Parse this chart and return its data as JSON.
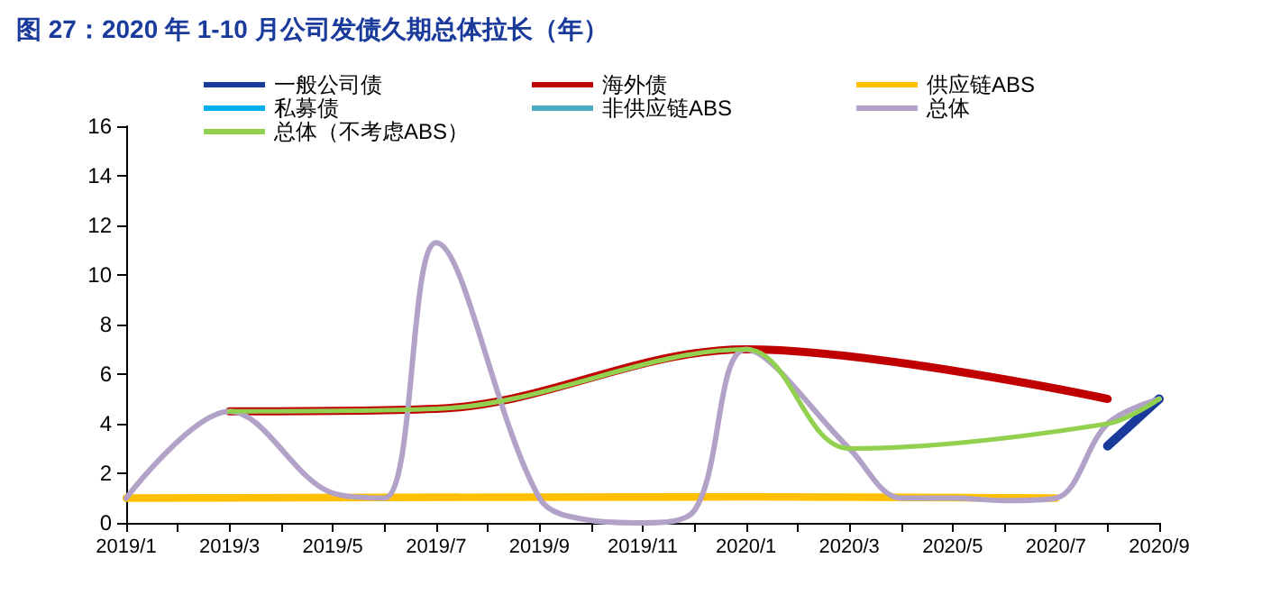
{
  "chart_data": {
    "type": "line",
    "title": "图 27：2020 年 1-10 月公司发债久期总体拉长（年）",
    "categories": [
      "2019/1",
      null,
      "2019/3",
      null,
      "2019/5",
      null,
      "2019/7",
      null,
      "2019/9",
      null,
      "2019/11",
      null,
      "2020/1",
      null,
      "2020/3",
      null,
      "2020/5",
      null,
      "2020/7",
      null,
      "2020/9"
    ],
    "series": [
      {
        "name": "一般公司债",
        "color": "#1a3a9c",
        "values": [
          null,
          null,
          null,
          null,
          null,
          null,
          null,
          null,
          null,
          null,
          null,
          null,
          null,
          null,
          null,
          null,
          null,
          null,
          null,
          3.1,
          5.0
        ]
      },
      {
        "name": "海外债",
        "color": "#c00000",
        "values": [
          null,
          null,
          4.5,
          null,
          null,
          null,
          4.6,
          null,
          null,
          null,
          null,
          null,
          7.0,
          null,
          null,
          null,
          null,
          null,
          null,
          5.0,
          null
        ]
      },
      {
        "name": "供应链ABS",
        "color": "#ffc000",
        "values": [
          1.0,
          null,
          null,
          null,
          null,
          null,
          null,
          null,
          null,
          null,
          null,
          null,
          1.05,
          null,
          null,
          null,
          null,
          null,
          1.0,
          null,
          null
        ]
      },
      {
        "name": "私募债",
        "color": "#00b0f0",
        "values": [
          null,
          null,
          null,
          null,
          null,
          null,
          null,
          null,
          null,
          null,
          null,
          null,
          null,
          null,
          null,
          null,
          null,
          null,
          null,
          null,
          null
        ]
      },
      {
        "name": "非供应链ABS",
        "color": "#4bacc6",
        "values": [
          null,
          null,
          null,
          null,
          null,
          null,
          null,
          null,
          null,
          null,
          null,
          null,
          null,
          null,
          null,
          null,
          null,
          null,
          null,
          null,
          null
        ]
      },
      {
        "name": "总体",
        "color": "#b3a2c7",
        "values": [
          1.0,
          null,
          4.5,
          null,
          1.2,
          1.0,
          11.3,
          null,
          1.0,
          0.1,
          0.0,
          0.5,
          7.0,
          null,
          3.0,
          1.0,
          1.0,
          0.9,
          1.0,
          4.0,
          5.0
        ]
      },
      {
        "name": "总体（不考虑ABS）",
        "color": "#92d050",
        "values": [
          null,
          null,
          4.5,
          null,
          null,
          null,
          4.6,
          null,
          null,
          null,
          null,
          null,
          7.0,
          null,
          3.0,
          null,
          null,
          null,
          null,
          4.0,
          5.0
        ]
      }
    ],
    "ylim": [
      0,
      16
    ],
    "yticks": [
      0,
      2,
      4,
      6,
      8,
      10,
      12,
      14,
      16
    ],
    "grid": false,
    "legend": "top",
    "marker": "none",
    "line_style": "solid"
  }
}
